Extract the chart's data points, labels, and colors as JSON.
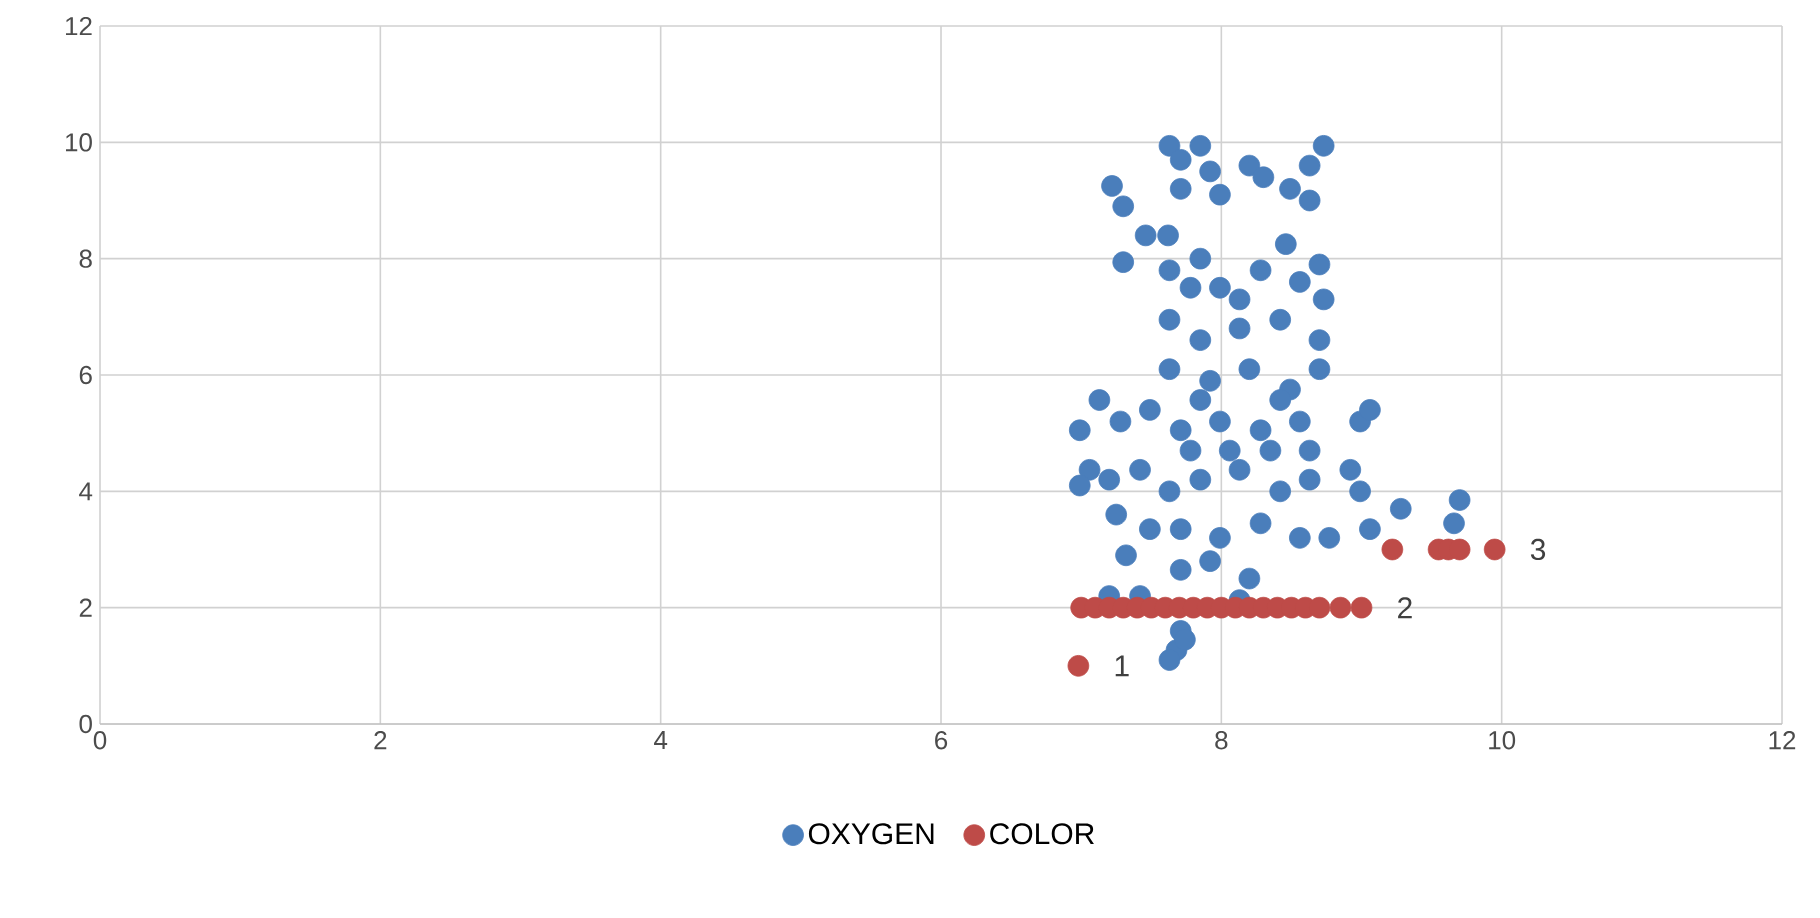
{
  "chart_data": {
    "type": "scatter",
    "xlim": [
      0,
      12
    ],
    "ylim": [
      0,
      12
    ],
    "xticks": [
      0,
      2,
      4,
      6,
      8,
      10,
      12
    ],
    "yticks": [
      0,
      2,
      4,
      6,
      8,
      10,
      12
    ],
    "grid": true,
    "legend": "bottom",
    "series": [
      {
        "name": "OXYGEN",
        "color": "#4a7ebb",
        "marker": "circle",
        "x": [
          7.22,
          7.3,
          7.63,
          7.71,
          7.85,
          7.92,
          7.99,
          7.71,
          8.2,
          8.3,
          8.49,
          8.63,
          8.73,
          8.63,
          7.3,
          7.46,
          7.62,
          7.63,
          8.46,
          7.85,
          7.99,
          8.28,
          8.56,
          8.7,
          8.73,
          7.63,
          7.85,
          8.13,
          8.42,
          8.7,
          7.63,
          7.92,
          8.2,
          8.49,
          8.7,
          7.13,
          7.28,
          7.49,
          7.71,
          7.99,
          8.28,
          8.56,
          8.99,
          9.06,
          6.99,
          7.06,
          6.99,
          7.2,
          7.42,
          7.63,
          7.85,
          8.13,
          8.42,
          8.63,
          8.92,
          8.99,
          9.06,
          9.28,
          9.7,
          9.66,
          7.25,
          7.49,
          7.32,
          7.71,
          7.99,
          8.28,
          8.56,
          8.77,
          7.71,
          7.92,
          8.2,
          7.2,
          7.42,
          8.13,
          7.71,
          7.68,
          7.63,
          7.74,
          7.78,
          8.06,
          8.35,
          8.63,
          7.85,
          8.42,
          8.13,
          7.78
        ],
        "values": [
          9.25,
          8.9,
          9.94,
          9.7,
          9.94,
          9.5,
          9.1,
          9.2,
          9.6,
          9.4,
          9.2,
          9.6,
          9.94,
          9.0,
          7.94,
          8.4,
          8.4,
          7.8,
          8.25,
          8.0,
          7.5,
          7.8,
          7.6,
          7.9,
          7.3,
          6.95,
          6.6,
          6.8,
          6.95,
          6.6,
          6.1,
          5.9,
          6.1,
          5.75,
          6.1,
          5.57,
          5.2,
          5.4,
          5.05,
          5.2,
          5.05,
          5.2,
          5.2,
          5.4,
          5.05,
          4.37,
          4.1,
          4.2,
          4.37,
          4.0,
          4.2,
          4.37,
          4.0,
          4.2,
          4.37,
          4.0,
          3.35,
          3.7,
          3.85,
          3.45,
          3.6,
          3.35,
          2.9,
          3.35,
          3.2,
          3.45,
          3.2,
          3.2,
          2.65,
          2.8,
          2.5,
          2.2,
          2.2,
          2.13,
          1.6,
          1.27,
          1.1,
          1.45,
          4.7,
          4.7,
          4.7,
          4.7,
          5.57,
          5.57,
          7.3,
          7.5
        ]
      },
      {
        "name": "COLOR",
        "color": "#be4b48",
        "marker": "circle",
        "x": [
          6.98,
          7.0,
          7.1,
          7.2,
          7.3,
          7.4,
          7.5,
          7.6,
          7.7,
          7.8,
          7.9,
          8.0,
          8.1,
          8.2,
          8.3,
          8.4,
          8.5,
          8.6,
          8.7,
          8.85,
          9.0,
          9.22,
          9.55,
          9.62,
          9.7,
          9.95
        ],
        "values": [
          1,
          2,
          2,
          2,
          2,
          2,
          2,
          2,
          2,
          2,
          2,
          2,
          2,
          2,
          2,
          2,
          2,
          2,
          2,
          2,
          2,
          3,
          3,
          3,
          3,
          3
        ]
      }
    ],
    "annotations": [
      {
        "text": "1",
        "x": 6.98,
        "y": 1
      },
      {
        "text": "2",
        "x": 9.0,
        "y": 2
      },
      {
        "text": "3",
        "x": 9.95,
        "y": 3
      }
    ]
  }
}
